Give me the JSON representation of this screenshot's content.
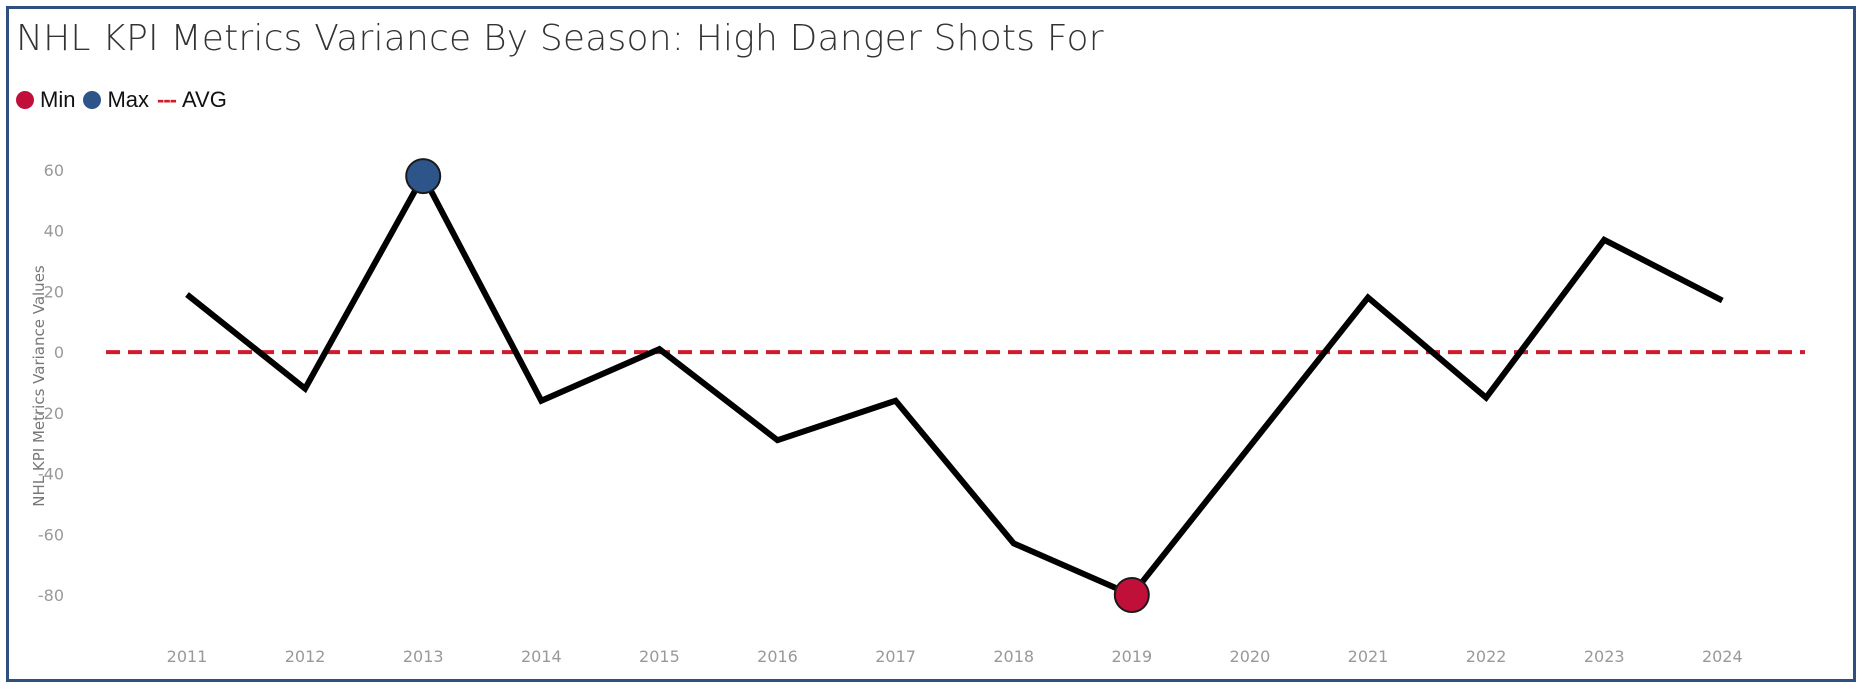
{
  "title": "NHL KPI Metrics Variance By Season: High Danger Shots For",
  "legend": {
    "min_label": "Min",
    "max_label": "Max",
    "avg_label": "AVG",
    "avg_glyph": "---"
  },
  "colors": {
    "min": "#c0103a",
    "max": "#2e5589",
    "avg": "#d01b2a",
    "line": "#000000",
    "border": "#2f4f7f",
    "axis_text": "#999999"
  },
  "chart_data": {
    "type": "line",
    "title": "NHL KPI Metrics Variance By Season: High Danger Shots For",
    "xlabel": "",
    "ylabel": "NHL KPI Metrics Variance Values",
    "categories": [
      "2011",
      "2012",
      "2013",
      "2014",
      "2015",
      "2016",
      "2017",
      "2018",
      "2019",
      "2020",
      "2021",
      "2022",
      "2023",
      "2024"
    ],
    "series": [
      {
        "values": [
          19,
          -12,
          58,
          -16,
          1,
          -29,
          -16,
          -63,
          -80,
          -31,
          18,
          -15,
          37,
          17
        ]
      }
    ],
    "avg_value": 0,
    "ylim": [
      -96,
      68
    ],
    "yticks": [
      60,
      40,
      20,
      0,
      -20,
      -40,
      -60,
      -80
    ],
    "ytick_labels": [
      "60",
      "40",
      "20",
      "0",
      "-20",
      "-40",
      "-60",
      "-80"
    ],
    "max_point": {
      "category": "2013",
      "value": 58
    },
    "min_point": {
      "category": "2019",
      "value": -80
    },
    "grid": false,
    "legend_position": "top-left"
  }
}
